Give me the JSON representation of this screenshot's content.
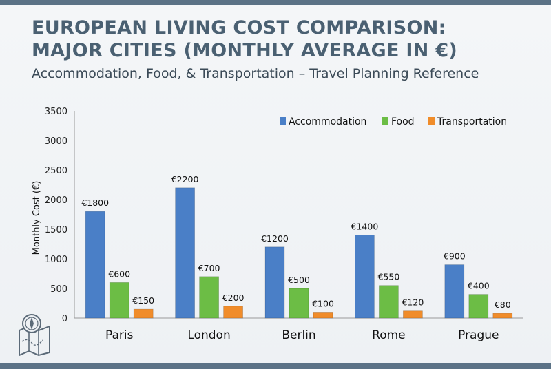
{
  "title_line1": "EUROPEAN LIVING COST COMPARISON:",
  "title_line2": "MAJOR CITIES (MONTHLY AVERAGE IN €)",
  "subtitle": "Accommodation, Food, & Transportation – Travel Planning Reference",
  "icon": "map-compass-icon",
  "colors": {
    "frame": "#5b7286",
    "title": "#4a6072"
  },
  "chart_data": {
    "type": "bar",
    "categories": [
      "Paris",
      "London",
      "Berlin",
      "Rome",
      "Prague"
    ],
    "series": [
      {
        "name": "Accommodation",
        "values": [
          1800,
          2200,
          1200,
          1400,
          900
        ],
        "color": "#4a7fc7",
        "labels": [
          "€1800",
          "€2200",
          "€1200",
          "€1400",
          "€900"
        ]
      },
      {
        "name": "Food",
        "values": [
          600,
          700,
          500,
          550,
          400
        ],
        "color": "#6cbd45",
        "labels": [
          "€600",
          "€700",
          "€500",
          "€550",
          "€400"
        ]
      },
      {
        "name": "Transportation",
        "values": [
          150,
          200,
          100,
          120,
          80
        ],
        "color": "#f08c2a",
        "labels": [
          "€150",
          "€200",
          "€100",
          "€120",
          "€80"
        ]
      }
    ],
    "ylabel": "Monthly Cost (€)",
    "ylim": [
      0,
      3500
    ],
    "yticks": [
      0,
      500,
      1000,
      1500,
      2000,
      2500,
      3000,
      3500
    ],
    "grid": false,
    "legend": "top-right"
  }
}
